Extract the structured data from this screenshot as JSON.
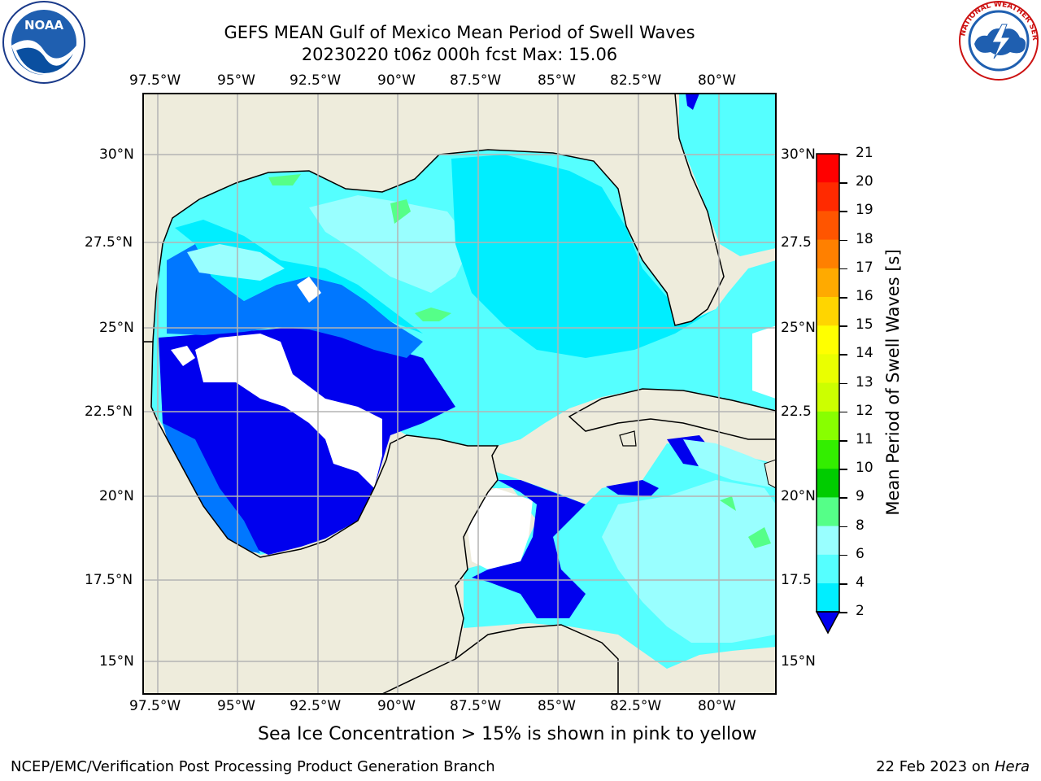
{
  "header": {
    "title_line1": "GEFS MEAN Gulf of Mexico Mean Period of Swell Waves",
    "title_line2": "20230220 t06z 000h fcst   Max: 15.06"
  },
  "logos": {
    "left": "NOAA",
    "left_ring": "NATIONAL OCEANIC AND ATMOSPHERIC ADMINISTRATION · U.S. DEPARTMENT OF COMMERCE",
    "right_ring": "NATIONAL WEATHER SERVICE"
  },
  "map": {
    "lon_labels": [
      "97.5°W",
      "95°W",
      "92.5°W",
      "90°W",
      "87.5°W",
      "85°W",
      "82.5°W",
      "80°W"
    ],
    "lat_labels_left": [
      "30°N",
      "27.5°N",
      "25°N",
      "22.5°N",
      "20°N",
      "17.5°N",
      "15°N"
    ],
    "lat_labels_right": [
      "30°N",
      "27.5",
      "25°N",
      "22.5",
      "20°N",
      "17.5",
      "15°N"
    ],
    "colors": {
      "land": "#eeecdc",
      "coast": "#000000",
      "grid": "#b4b4b4",
      "nodata": "#ffffff"
    }
  },
  "colorbar": {
    "label": "Mean Period of Swell Waves [s]",
    "ticks": [
      "21",
      "20",
      "19",
      "18",
      "17",
      "16",
      "15",
      "14",
      "13",
      "12",
      "11",
      "10",
      "9",
      "8",
      "6",
      "4",
      "2"
    ],
    "colors": [
      "#ff0000",
      "#ff2a00",
      "#ff5500",
      "#ff8000",
      "#ffaa00",
      "#ffd500",
      "#ffff00",
      "#eaff00",
      "#ccff00",
      "#88ff00",
      "#33ee00",
      "#00cc00",
      "#55ff88",
      "#99ffff",
      "#55ffff",
      "#00eeff",
      "#0077ff",
      "#0000ee"
    ]
  },
  "footer": {
    "ice_note": "Sea Ice Concentration > 15% is shown in pink to yellow",
    "credit": "NCEP/EMC/Verification Post Processing Product Generation Branch",
    "date": "22 Feb 2023 on ",
    "machine": "Hera"
  }
}
